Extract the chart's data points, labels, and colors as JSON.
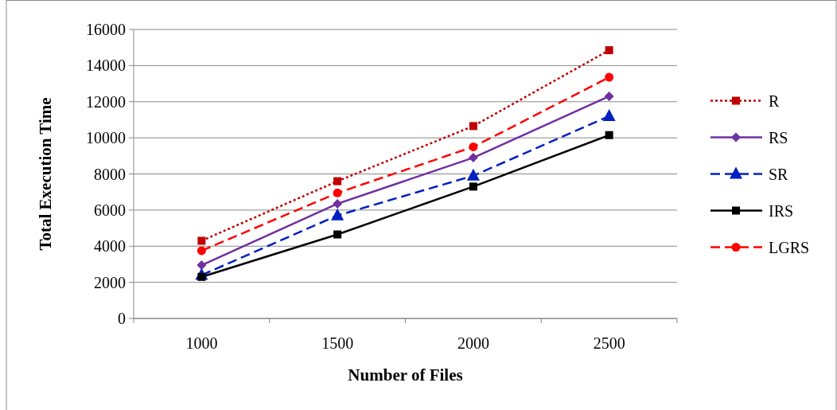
{
  "chart_data": {
    "type": "line",
    "xlabel": "Number of Files",
    "ylabel": "Total Execution Time",
    "categories": [
      "1000",
      "1500",
      "2000",
      "2500"
    ],
    "series": [
      {
        "name": "R",
        "color": "#c00000",
        "values": [
          4300,
          7600,
          10650,
          14850
        ],
        "marker": "square",
        "line_style": "dotted"
      },
      {
        "name": "RS",
        "color": "#7030a0",
        "values": [
          2950,
          6350,
          8900,
          12300
        ],
        "marker": "diamond",
        "line_style": "solid"
      },
      {
        "name": "SR",
        "color": "#0020c0",
        "values": [
          2400,
          5700,
          7900,
          11200
        ],
        "marker": "triangle",
        "line_style": "dashed"
      },
      {
        "name": "IRS",
        "color": "#000000",
        "values": [
          2300,
          4650,
          7300,
          10150
        ],
        "marker": "square",
        "line_style": "solid"
      },
      {
        "name": "LGRS",
        "color": "#ff0000",
        "values": [
          3750,
          6950,
          9500,
          13350
        ],
        "marker": "circle",
        "line_style": "dashed"
      }
    ],
    "ylim": [
      0,
      16000
    ],
    "yticks": [
      0,
      2000,
      4000,
      6000,
      8000,
      10000,
      12000,
      14000,
      16000
    ],
    "grid": "y",
    "legend": "right"
  }
}
